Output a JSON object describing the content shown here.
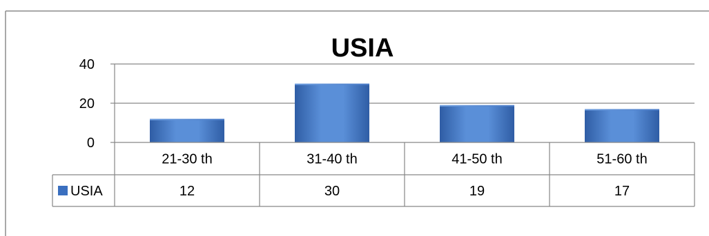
{
  "chart_data": {
    "type": "bar",
    "title": "USIA",
    "categories": [
      "21-30 th",
      "31-40 th",
      "41-50 th",
      "51-60 th"
    ],
    "series": [
      {
        "name": "USIA",
        "values": [
          12,
          30,
          19,
          17
        ],
        "color": "#3a6fbf"
      }
    ],
    "ylim": [
      0,
      40
    ],
    "yticks": [
      0,
      20,
      40
    ],
    "xlabel": "",
    "ylabel": "",
    "grid": true,
    "legend": "data-table-left",
    "colors": {
      "bar_light": "#5e93da",
      "bar_dark": "#3563ad",
      "grid": "#868686",
      "frame": "#888888"
    }
  }
}
